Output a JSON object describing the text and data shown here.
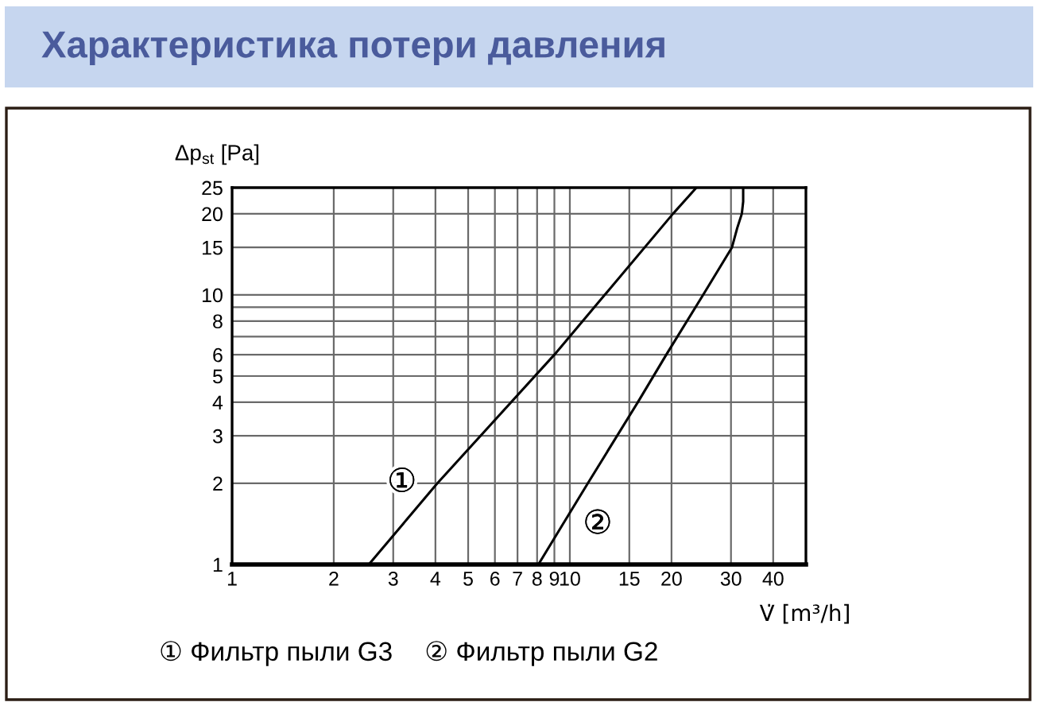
{
  "chart_data": {
    "type": "line",
    "title": "Характеристика потери давления",
    "xlabel": "V̇ [m³/h]",
    "ylabel": "Δp$_{st}$ [Pa]",
    "log": "xy",
    "grid": true,
    "xlim": [
      1,
      50
    ],
    "ylim": [
      1,
      25
    ],
    "xticks": [
      1,
      2,
      3,
      4,
      5,
      6,
      7,
      8,
      9,
      10,
      15,
      20,
      30,
      40
    ],
    "yticks": [
      1,
      2,
      3,
      4,
      5,
      6,
      {
        "value": 7,
        "label": null
      },
      8,
      {
        "value": 9,
        "label": null
      },
      10,
      15,
      20,
      25
    ],
    "series": [
      {
        "color": "#000000",
        "x": [
          2.54,
          4.05,
          9.0,
          20.2,
          23.7
        ],
        "values": [
          1,
          2,
          6,
          20,
          25
        ]
      },
      {
        "color": "#000000",
        "x": [
          8.07,
          9.5,
          11.3,
          15.9,
          19.3,
          24.8,
          30.2,
          31.3,
          32.3,
          32.6,
          32.6
        ],
        "values": [
          1,
          1.4,
          2,
          4,
          6,
          10,
          15,
          17.7,
          20,
          22.2,
          25
        ]
      }
    ],
    "annotations": [
      {
        "text": "①",
        "x": 4.05,
        "y": 2
      },
      {
        "text": "②",
        "x": 9.5,
        "y": 1.4
      },
      "① Фильтр пыли G3",
      "② Фильтр пыли G2"
    ]
  }
}
